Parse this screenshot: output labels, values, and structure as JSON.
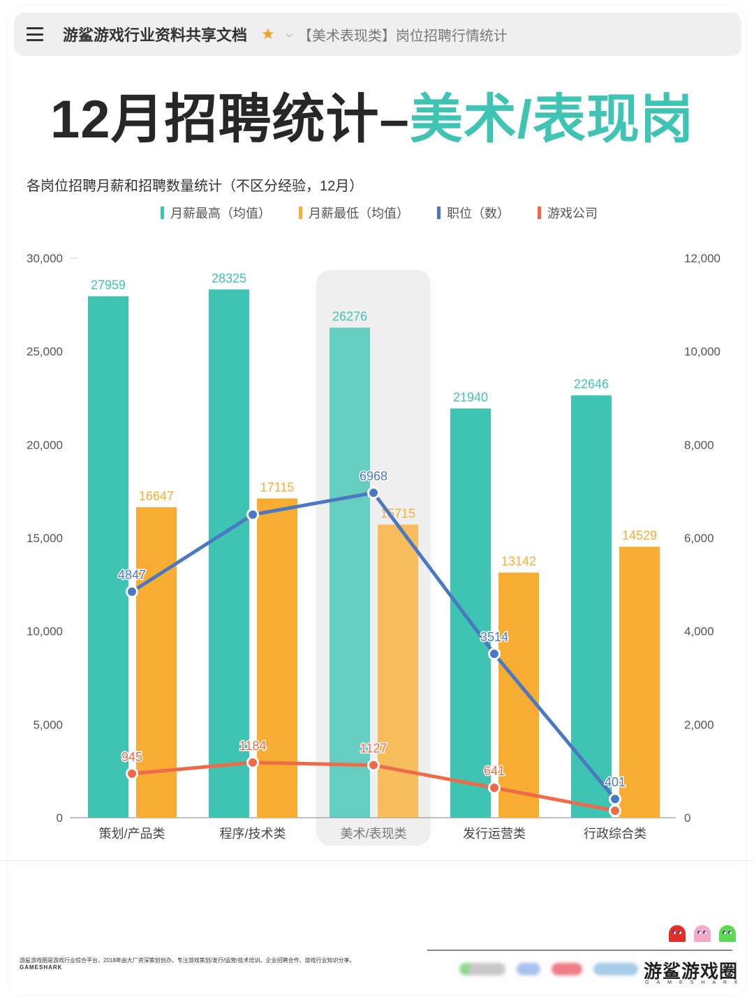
{
  "topbar": {
    "doc_title": "游鲨游戏行业资料共享文档",
    "breadcrumb": "【美术表现类】岗位招聘行情统计",
    "icons": {
      "menu": "hamburger-menu-icon",
      "star": "star-icon",
      "chevron": "chevron-down-icon"
    }
  },
  "headline": {
    "prefix": "12月招聘统计–",
    "highlight": "美术/表现岗"
  },
  "colors": {
    "teal": "#3fc4b4",
    "orange": "#f8ad32",
    "blue": "#4a78c2",
    "red": "#ee6a48",
    "highlight_band": "#efefef"
  },
  "chart_data": {
    "type": "bar",
    "title": "各岗位招聘月薪和招聘数量统计（不区分经验，12月）",
    "categories": [
      "策划/产品类",
      "程序/技术类",
      "美术/表现类",
      "发行运营类",
      "行政综合类"
    ],
    "highlighted_category": "美术/表现类",
    "series": [
      {
        "name": "月薪最高（均值）",
        "type": "bar",
        "axis": "left",
        "color": "#3fc4b4",
        "values": [
          27959,
          28325,
          26276,
          21940,
          22646
        ],
        "labels": [
          "27959",
          "28325",
          "26276",
          "21940",
          "22646"
        ]
      },
      {
        "name": "月薪最低（均值）",
        "type": "bar",
        "axis": "left",
        "color": "#f8ad32",
        "values": [
          16647,
          17115,
          15715,
          13142,
          14529
        ],
        "labels": [
          "16647",
          "17115",
          "15715",
          "13142",
          "14529"
        ]
      },
      {
        "name": "职位（数）",
        "type": "line",
        "axis": "right",
        "color": "#4a78c2",
        "values": [
          4847,
          6500,
          6968,
          3514,
          401
        ],
        "labels": [
          "4847",
          "",
          "6968",
          "3514",
          "401"
        ]
      },
      {
        "name": "游戏公司",
        "type": "line",
        "axis": "right",
        "color": "#ee6a48",
        "values": [
          945,
          1184,
          1127,
          641,
          150
        ],
        "labels": [
          "945",
          "1184",
          "1127",
          "641",
          ""
        ]
      }
    ],
    "left_axis": {
      "ylim": [
        0,
        30000
      ],
      "ticks": [
        "0",
        "5,000",
        "10,000",
        "15,000",
        "20,000",
        "25,000",
        "30,000"
      ]
    },
    "right_axis": {
      "ylim": [
        0,
        12000
      ],
      "ticks": [
        "0",
        "2,000",
        "4,000",
        "6,000",
        "8,000",
        "10,000",
        "12,000"
      ]
    },
    "xlabel": "",
    "ylabel": "",
    "grid": false,
    "legend_position": "top"
  },
  "footer": {
    "description": "游鲨游戏圈是游戏行业综合平台，2018年由大厂资深策划创办。专注游戏策划/发行/运营/技术培训、企业招聘合作、游戏行业知识分享。",
    "brand_small": "GAMESHARK",
    "brand_big": "游鲨游戏圈",
    "brand_sub": "GAMESHARK",
    "ghost_colors": [
      "#e0302b",
      "#f4a9c4",
      "#5fd855"
    ]
  }
}
